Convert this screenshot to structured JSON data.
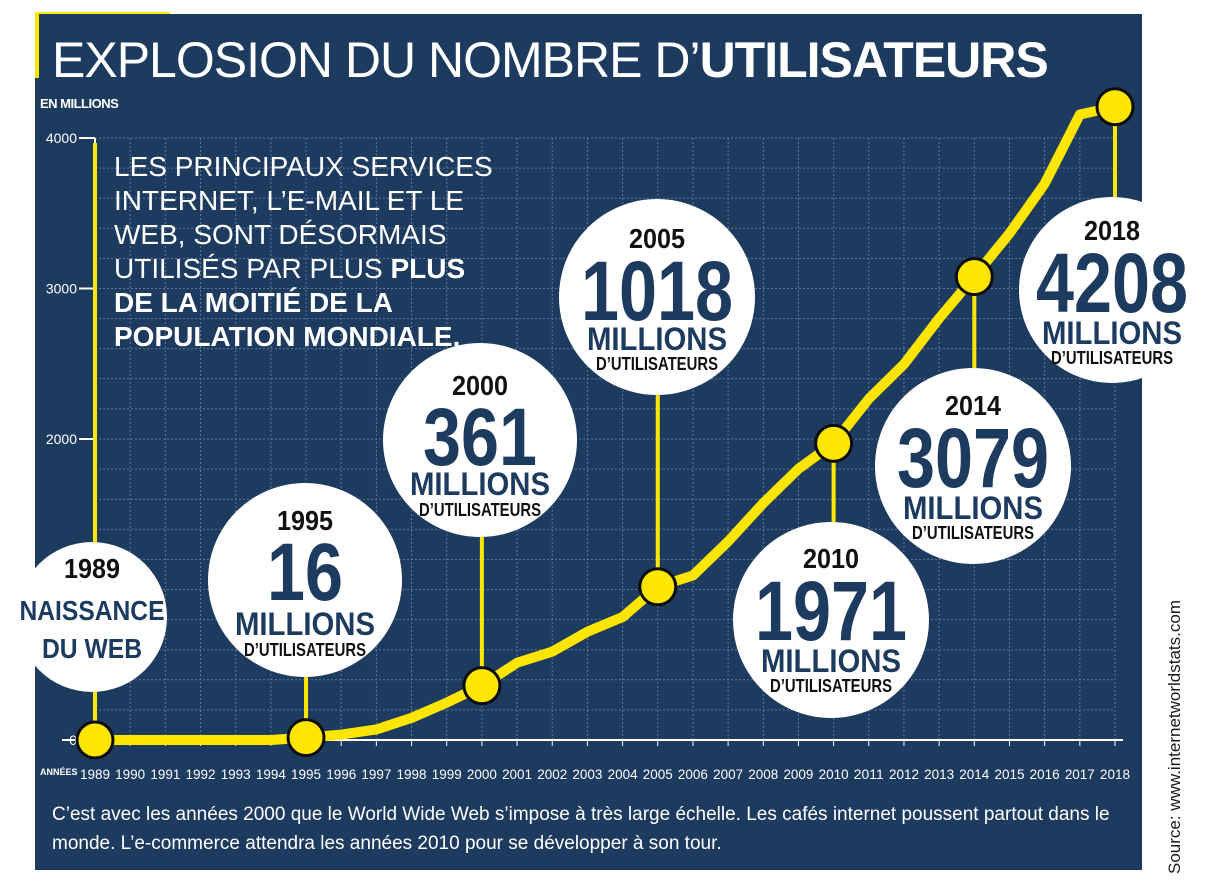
{
  "title": {
    "light": "EXPLOSION DU NOMBRE D’",
    "bold": "UTILISATEURS"
  },
  "unit_label": "EN MILLIONS",
  "intro": {
    "light": "LES PRINCIPAUX SERVICES INTERNET, L’E-MAIL ET LE WEB, SONT DÉSORMAIS UTILISÉS PAR PLUS ",
    "bold": "PLUS DE LA MOITIÉ DE LA POPULATION MONDIALE."
  },
  "caption": "C’est avec les années 2000 que le World Wide Web s’impose à très large échelle. Les cafés internet poussent partout dans le monde. L’e-commerce attendra les années 2010 pour se développer à son tour.",
  "source": "Source: www.internetworldstats.com",
  "colors": {
    "background": "#1d3a5f",
    "accent": "#ffe600",
    "grid": "#5f7799",
    "bubble": "#ffffff",
    "bubble_text": "#1d3a5f"
  },
  "chart_data": {
    "type": "line",
    "title": "EXPLOSION DU NOMBRE D’UTILISATEURS",
    "ylabel": "EN MILLIONS",
    "xlabel": "ANNÉES",
    "x": [
      1989,
      1990,
      1991,
      1992,
      1993,
      1994,
      1995,
      1996,
      1997,
      1998,
      1999,
      2000,
      2001,
      2002,
      2003,
      2004,
      2005,
      2006,
      2007,
      2008,
      2009,
      2010,
      2011,
      2012,
      2013,
      2014,
      2015,
      2016,
      2017,
      2018
    ],
    "values": [
      0,
      0,
      0,
      0,
      0,
      0,
      16,
      36,
      70,
      147,
      248,
      361,
      513,
      587,
      719,
      817,
      1018,
      1093,
      1319,
      1574,
      1802,
      1971,
      2267,
      2497,
      2802,
      3079,
      3366,
      3696,
      4156,
      4208
    ],
    "ylim": [
      0,
      4000
    ],
    "yticks": [
      "0",
      "1000",
      "2000",
      "3000",
      "4000"
    ],
    "ytick_labels": [
      "0",
      "",
      "2000",
      "3000",
      "4000"
    ],
    "xtick_labels": [
      "1989",
      "1990",
      "1991",
      "1992",
      "1993",
      "1994",
      "1995",
      "1996",
      "1997",
      "1998",
      "1999",
      "2000",
      "2001",
      "2002",
      "2003",
      "2004",
      "2005",
      "2006",
      "2007",
      "2008",
      "2009",
      "2010",
      "2011",
      "2012",
      "2013",
      "2014",
      "2015",
      "2016",
      "2017",
      "2018"
    ],
    "x_axis_label": "ANNÉES",
    "grid": true,
    "annotations": [
      {
        "year": 1989,
        "year_label": "1989",
        "big": "NAISSANCE",
        "mid": "DU WEB",
        "small": ""
      },
      {
        "year": 1995,
        "year_label": "1995",
        "big": "16",
        "mid": "MILLIONS",
        "small": "D’UTILISATEURS"
      },
      {
        "year": 2000,
        "year_label": "2000",
        "big": "361",
        "mid": "MILLIONS",
        "small": "D’UTILISATEURS"
      },
      {
        "year": 2005,
        "year_label": "2005",
        "big": "1018",
        "mid": "MILLIONS",
        "small": "D’UTILISATEURS"
      },
      {
        "year": 2010,
        "year_label": "2010",
        "big": "1971",
        "mid": "MILLIONS",
        "small": "D’UTILISATEURS"
      },
      {
        "year": 2014,
        "year_label": "2014",
        "big": "3079",
        "mid": "MILLIONS",
        "small": "D’UTILISATEURS"
      },
      {
        "year": 2018,
        "year_label": "2018",
        "big": "4208",
        "mid": "MILLIONS",
        "small": "D’UTILISATEURS"
      }
    ]
  }
}
